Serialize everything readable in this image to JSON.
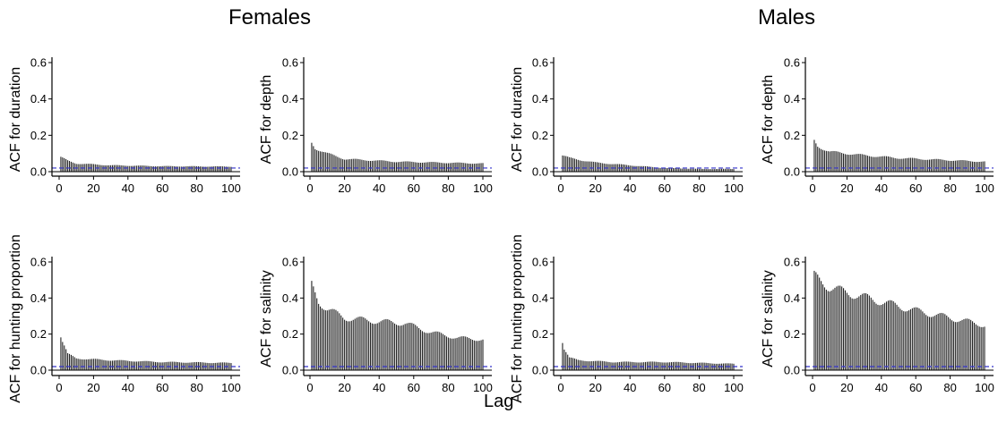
{
  "groups": {
    "left": "Females",
    "right": "Males"
  },
  "xlabel": "Lag",
  "colors": {
    "bars": "#222222",
    "axis": "#000000",
    "ci_line": "#3333cc"
  },
  "chart_data": [
    {
      "type": "bar",
      "group": "Females",
      "ylabel": "ACF for duration",
      "x_range": [
        0,
        100
      ],
      "ylim": [
        0,
        0.6
      ],
      "xticks": [
        0,
        20,
        40,
        60,
        80,
        100
      ],
      "yticks": [
        "0.0",
        "0.2",
        "0.4",
        "0.6"
      ],
      "ci": 0.02,
      "profile": [
        [
          1,
          0.08
        ],
        [
          5,
          0.06
        ],
        [
          10,
          0.045
        ],
        [
          30,
          0.035
        ],
        [
          60,
          0.03
        ],
        [
          100,
          0.028
        ]
      ],
      "grid": false
    },
    {
      "type": "bar",
      "group": "Females",
      "ylabel": "ACF for depth",
      "x_range": [
        0,
        100
      ],
      "ylim": [
        0,
        0.6
      ],
      "xticks": [
        0,
        20,
        40,
        60,
        80,
        100
      ],
      "yticks": [
        "0.0",
        "0.2",
        "0.4",
        "0.6"
      ],
      "ci": 0.02,
      "profile": [
        [
          1,
          0.16
        ],
        [
          3,
          0.13
        ],
        [
          10,
          0.1
        ],
        [
          20,
          0.07
        ],
        [
          50,
          0.055
        ],
        [
          100,
          0.045
        ]
      ],
      "grid": false
    },
    {
      "type": "bar",
      "group": "Males",
      "ylabel": "ACF for duration",
      "x_range": [
        0,
        100
      ],
      "ylim": [
        0,
        0.6
      ],
      "xticks": [
        0,
        20,
        40,
        60,
        80,
        100
      ],
      "yticks": [
        "0.0",
        "0.2",
        "0.4",
        "0.6"
      ],
      "ci": 0.02,
      "profile": [
        [
          1,
          0.09
        ],
        [
          5,
          0.075
        ],
        [
          20,
          0.05
        ],
        [
          40,
          0.035
        ],
        [
          60,
          0.02
        ],
        [
          80,
          0.015
        ],
        [
          100,
          0.015
        ]
      ],
      "grid": false
    },
    {
      "type": "bar",
      "group": "Males",
      "ylabel": "ACF for depth",
      "x_range": [
        0,
        100
      ],
      "ylim": [
        0,
        0.6
      ],
      "xticks": [
        0,
        20,
        40,
        60,
        80,
        100
      ],
      "yticks": [
        "0.0",
        "0.2",
        "0.4",
        "0.6"
      ],
      "ci": 0.02,
      "profile": [
        [
          1,
          0.17
        ],
        [
          3,
          0.14
        ],
        [
          10,
          0.11
        ],
        [
          30,
          0.09
        ],
        [
          50,
          0.075
        ],
        [
          100,
          0.055
        ]
      ],
      "grid": false
    },
    {
      "type": "bar",
      "group": "Females",
      "ylabel": "ACF for hunting proportion",
      "x_range": [
        0,
        100
      ],
      "ylim": [
        0,
        0.6
      ],
      "xticks": [
        0,
        20,
        40,
        60,
        80,
        100
      ],
      "yticks": [
        "0.0",
        "0.2",
        "0.4",
        "0.6"
      ],
      "ci": 0.02,
      "profile": [
        [
          1,
          0.19
        ],
        [
          2,
          0.16
        ],
        [
          5,
          0.09
        ],
        [
          10,
          0.065
        ],
        [
          30,
          0.055
        ],
        [
          60,
          0.045
        ],
        [
          100,
          0.04
        ]
      ],
      "grid": false
    },
    {
      "type": "bar",
      "group": "Females",
      "ylabel": "ACF for salinity",
      "x_range": [
        0,
        100
      ],
      "ylim": [
        0,
        0.6
      ],
      "xticks": [
        0,
        20,
        40,
        60,
        80,
        100
      ],
      "yticks": [
        "0.0",
        "0.2",
        "0.4",
        "0.6"
      ],
      "ci": 0.02,
      "profile": [
        [
          1,
          0.47
        ],
        [
          5,
          0.38
        ],
        [
          10,
          0.34
        ],
        [
          20,
          0.29
        ],
        [
          40,
          0.27
        ],
        [
          55,
          0.26
        ],
        [
          70,
          0.21
        ],
        [
          85,
          0.18
        ],
        [
          100,
          0.17
        ]
      ],
      "grid": false
    },
    {
      "type": "bar",
      "group": "Males",
      "ylabel": "ACF for hunting proportion",
      "x_range": [
        0,
        100
      ],
      "ylim": [
        0,
        0.6
      ],
      "xticks": [
        0,
        20,
        40,
        60,
        80,
        100
      ],
      "yticks": [
        "0.0",
        "0.2",
        "0.4",
        "0.6"
      ],
      "ci": 0.02,
      "profile": [
        [
          1,
          0.16
        ],
        [
          2,
          0.12
        ],
        [
          5,
          0.07
        ],
        [
          10,
          0.055
        ],
        [
          30,
          0.045
        ],
        [
          60,
          0.045
        ],
        [
          100,
          0.035
        ]
      ],
      "grid": false
    },
    {
      "type": "bar",
      "group": "Males",
      "ylabel": "ACF for salinity",
      "x_range": [
        0,
        100
      ],
      "ylim": [
        0,
        0.6
      ],
      "xticks": [
        0,
        20,
        40,
        60,
        80,
        100
      ],
      "yticks": [
        "0.0",
        "0.2",
        "0.4",
        "0.6"
      ],
      "ci": 0.02,
      "profile": [
        [
          1,
          0.52
        ],
        [
          10,
          0.46
        ],
        [
          20,
          0.43
        ],
        [
          40,
          0.38
        ],
        [
          60,
          0.33
        ],
        [
          80,
          0.29
        ],
        [
          100,
          0.25
        ]
      ],
      "grid": false
    }
  ]
}
